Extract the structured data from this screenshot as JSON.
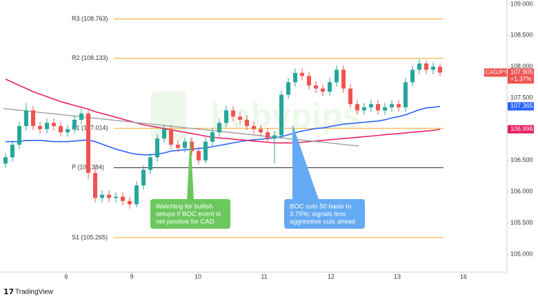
{
  "chart_data": {
    "type": "candlestick",
    "symbol": "CADJPY",
    "last_price": "107.905",
    "change": "+1.37%",
    "watermark": "babypips",
    "brand": "TradingView",
    "up_color": "#26a69a",
    "down_color": "#ef5350",
    "x": [
      0,
      1,
      2,
      3,
      4,
      5,
      6,
      7,
      8,
      9,
      10,
      11,
      12,
      13,
      14,
      15,
      16,
      17,
      18,
      19,
      20,
      21,
      22,
      23,
      24,
      25,
      26,
      27,
      28,
      29,
      30,
      31,
      32,
      33,
      34,
      35,
      36,
      37,
      38,
      39,
      40,
      41,
      42,
      43,
      44,
      45,
      46,
      47,
      48,
      49,
      50,
      51,
      52,
      53,
      54,
      55,
      56,
      57,
      58,
      59,
      60,
      61,
      62,
      63
    ],
    "open": [
      106.45,
      106.55,
      106.75,
      107.05,
      107.3,
      107.05,
      107.0,
      107.1,
      107.05,
      106.95,
      107.0,
      107.15,
      107.25,
      106.3,
      105.9,
      105.95,
      105.9,
      105.92,
      105.85,
      105.8,
      106.1,
      106.35,
      106.55,
      106.85,
      107.0,
      106.75,
      106.7,
      106.8,
      106.65,
      106.5,
      106.8,
      106.95,
      107.1,
      107.3,
      107.2,
      107.15,
      107.05,
      107.0,
      106.95,
      106.85,
      106.9,
      107.55,
      107.75,
      107.9,
      107.85,
      107.7,
      107.65,
      107.6,
      107.75,
      107.95,
      107.65,
      107.4,
      107.3,
      107.35,
      107.4,
      107.3,
      107.35,
      107.4,
      107.35,
      107.75,
      107.95,
      108.05,
      107.95,
      108.0
    ],
    "high": [
      106.62,
      106.82,
      107.12,
      107.42,
      107.37,
      107.12,
      107.17,
      107.17,
      107.12,
      107.07,
      107.22,
      107.32,
      107.3,
      106.37,
      106.02,
      106.02,
      105.99,
      105.99,
      105.92,
      106.17,
      106.42,
      106.62,
      106.92,
      107.07,
      107.07,
      106.82,
      106.87,
      106.87,
      106.72,
      106.87,
      107.02,
      107.17,
      107.37,
      107.37,
      107.27,
      107.22,
      107.12,
      107.07,
      107.02,
      106.97,
      107.62,
      107.82,
      107.97,
      107.97,
      107.92,
      107.77,
      107.72,
      107.82,
      108.02,
      108.02,
      107.72,
      107.47,
      107.42,
      107.47,
      107.47,
      107.42,
      107.47,
      107.47,
      107.82,
      108.02,
      108.12,
      108.1,
      108.07,
      108.05
    ],
    "low": [
      106.38,
      106.48,
      106.68,
      106.98,
      106.98,
      106.93,
      106.93,
      106.98,
      106.88,
      106.88,
      106.93,
      107.08,
      106.2,
      105.83,
      105.83,
      105.83,
      105.83,
      105.78,
      105.73,
      105.75,
      106.03,
      106.28,
      106.48,
      106.78,
      106.68,
      106.63,
      106.63,
      106.58,
      106.43,
      106.45,
      106.73,
      106.88,
      107.03,
      107.13,
      107.08,
      106.98,
      106.93,
      106.88,
      106.78,
      106.45,
      106.85,
      107.48,
      107.68,
      107.78,
      107.63,
      107.58,
      107.53,
      107.53,
      107.68,
      107.58,
      107.33,
      107.23,
      107.23,
      107.28,
      107.23,
      107.23,
      107.28,
      107.28,
      107.28,
      107.68,
      107.88,
      107.88,
      107.88,
      107.85
    ],
    "close": [
      106.55,
      106.75,
      107.05,
      107.3,
      107.05,
      107.0,
      107.1,
      107.05,
      106.95,
      107.0,
      107.15,
      107.25,
      106.3,
      105.9,
      105.95,
      105.9,
      105.92,
      105.85,
      105.8,
      106.1,
      106.35,
      106.55,
      106.85,
      107.0,
      106.75,
      106.7,
      106.8,
      106.65,
      106.5,
      106.8,
      106.95,
      107.1,
      107.3,
      107.2,
      107.15,
      107.05,
      107.0,
      106.95,
      106.85,
      106.9,
      107.55,
      107.75,
      107.9,
      107.85,
      107.7,
      107.65,
      107.6,
      107.75,
      107.95,
      107.65,
      107.4,
      107.3,
      107.35,
      107.4,
      107.3,
      107.35,
      107.4,
      107.35,
      107.75,
      107.95,
      108.05,
      107.95,
      108.0,
      107.905
    ],
    "series": [
      {
        "color": "#2962ff",
        "value_label": "107.365",
        "values": [
          106.8,
          106.8,
          106.8,
          106.82,
          106.82,
          106.82,
          106.81,
          106.8,
          106.8,
          106.8,
          106.81,
          106.82,
          106.83,
          106.8,
          106.76,
          106.72,
          106.68,
          106.65,
          106.62,
          106.6,
          106.59,
          106.59,
          106.6,
          106.62,
          106.65,
          106.66,
          106.67,
          106.68,
          106.69,
          106.7,
          106.72,
          106.74,
          106.76,
          106.78,
          106.8,
          106.82,
          106.83,
          106.84,
          106.85,
          106.86,
          106.88,
          106.91,
          106.94,
          106.97,
          106.99,
          107.01,
          107.02,
          107.04,
          107.06,
          107.08,
          107.09,
          107.1,
          107.11,
          107.12,
          107.13,
          107.15,
          107.18,
          107.2,
          107.23,
          107.27,
          107.31,
          107.34,
          107.35,
          107.365
        ]
      },
      {
        "color": "#e91e63",
        "value_label": "106.998",
        "values": [
          107.8,
          107.75,
          107.7,
          107.65,
          107.6,
          107.56,
          107.52,
          107.48,
          107.44,
          107.41,
          107.38,
          107.35,
          107.32,
          107.28,
          107.25,
          107.22,
          107.19,
          107.16,
          107.13,
          107.1,
          107.07,
          107.05,
          107.03,
          107.01,
          106.99,
          106.97,
          106.95,
          106.93,
          106.91,
          106.89,
          106.87,
          106.86,
          106.85,
          106.84,
          106.83,
          106.82,
          106.81,
          106.8,
          106.79,
          106.78,
          106.78,
          106.78,
          106.78,
          106.79,
          106.8,
          106.81,
          106.82,
          106.83,
          106.84,
          106.85,
          106.86,
          106.87,
          106.88,
          106.89,
          106.9,
          106.91,
          106.92,
          106.93,
          106.94,
          106.95,
          106.96,
          106.97,
          106.98,
          106.998
        ]
      }
    ],
    "trendline": {
      "color": "#9e9e9e",
      "x": [
        -0.3,
        51.2
      ],
      "y": [
        107.33,
        106.73
      ]
    },
    "levels": [
      {
        "label": "R3 (108.763)",
        "value": 108.763,
        "color": "#f5a623"
      },
      {
        "label": "R2 (108.133)",
        "value": 108.133,
        "color": "#f5a623"
      },
      {
        "label": "R1 (107.014)",
        "value": 107.014,
        "color": "#f5a623"
      },
      {
        "label": "P (106.384)",
        "value": 106.384,
        "color": "#222222"
      },
      {
        "label": "S1 (105.265)",
        "value": 105.265,
        "color": "#f5a623"
      }
    ],
    "level_span": [
      15.7,
      63.5
    ],
    "annotations": [
      {
        "lines": [
          "Watching for bullish",
          "setups if BOC event is",
          "net positive for CAD"
        ],
        "color": "#6cc85e"
      },
      {
        "lines": [
          "BOC cuts 50 basis to",
          "3.75%; signals less",
          "aggressive cuts ahead"
        ],
        "color": "#64a9f3"
      }
    ],
    "xlim": [
      -0.8,
      72.7
    ],
    "xticks": [
      {
        "value": 8.8,
        "label": "6"
      },
      {
        "value": 18.3,
        "label": "9"
      },
      {
        "value": 27.9,
        "label": "10"
      },
      {
        "value": 37.5,
        "label": "11"
      },
      {
        "value": 47.2,
        "label": "12"
      },
      {
        "value": 56.8,
        "label": "13"
      },
      {
        "value": 66.4,
        "label": "16"
      }
    ],
    "ylim": [
      104.713,
      109.066
    ],
    "yticks": [
      {
        "value": 109,
        "label": "109.000"
      },
      {
        "value": 108.5,
        "label": "108.500"
      },
      {
        "value": 108,
        "label": "108.000"
      },
      {
        "value": 107.5,
        "label": "107.500"
      },
      {
        "value": 107,
        "label": "107.000"
      },
      {
        "value": 106.5,
        "label": "106.500"
      },
      {
        "value": 106,
        "label": "106.000"
      },
      {
        "value": 105.5,
        "label": "105.500"
      },
      {
        "value": 105,
        "label": "105.000"
      }
    ]
  }
}
